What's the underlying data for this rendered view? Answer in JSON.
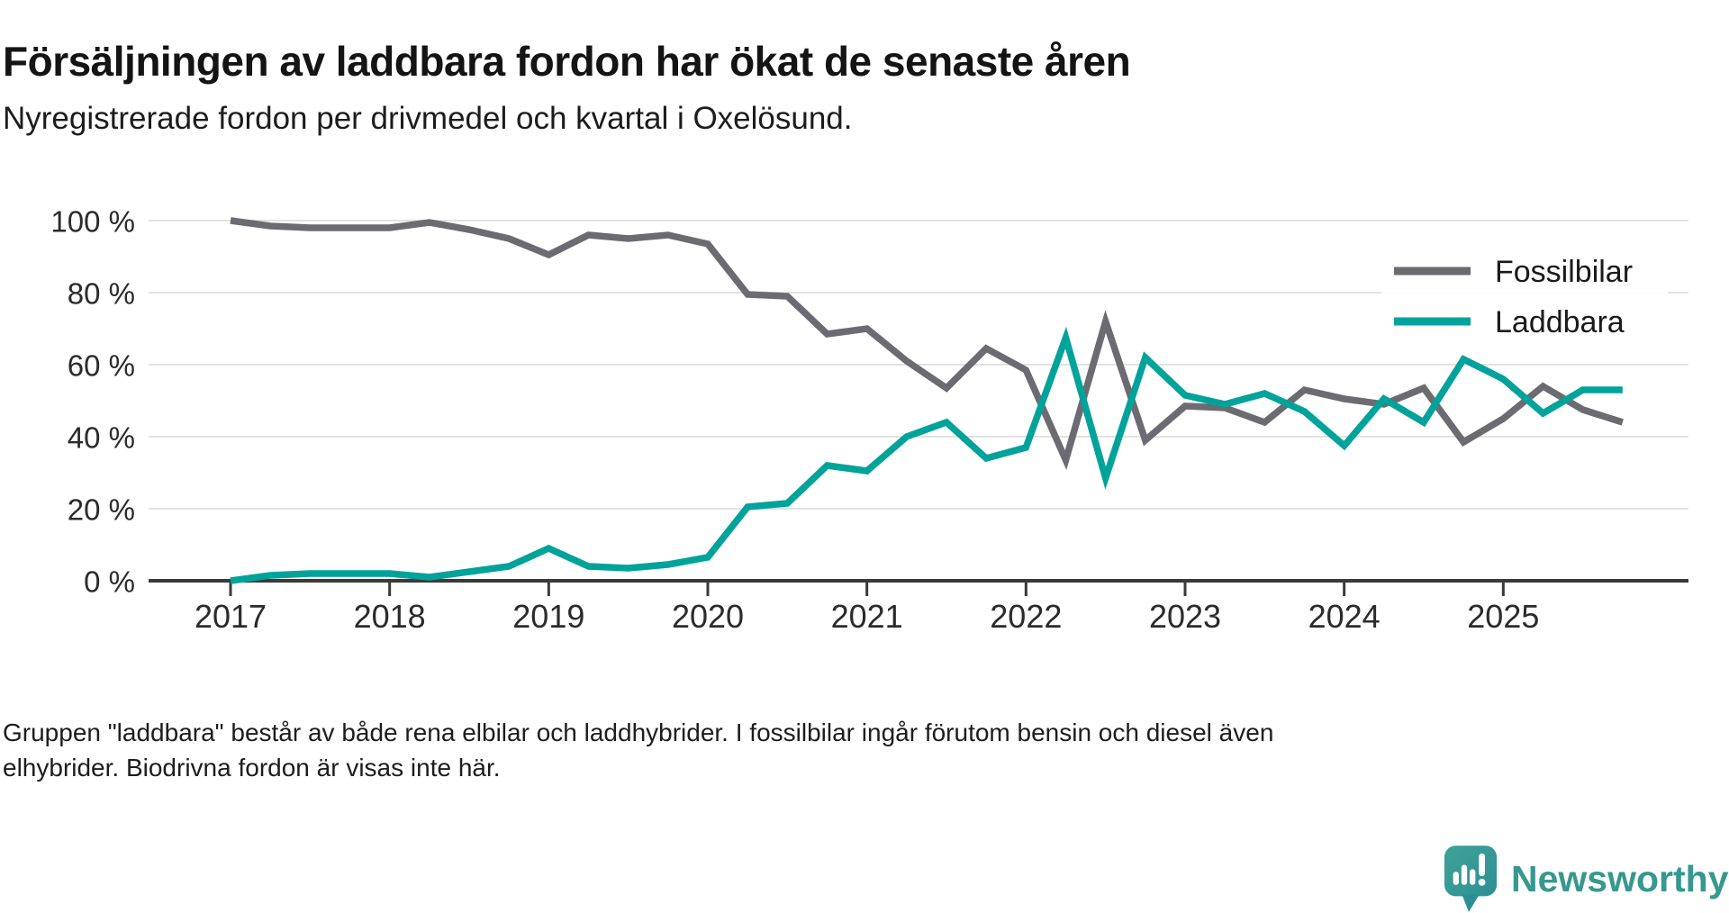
{
  "header": {
    "title": "Försäljningen av laddbara fordon har ökat de senaste åren",
    "subtitle": "Nyregistrerade fordon per drivmedel och kvartal i Oxelösund."
  },
  "chart_data": {
    "type": "line",
    "title": "Nyregistrerade fordon per drivmedel och kvartal i Oxelösund",
    "xlabel": "",
    "ylabel": "",
    "ylim": [
      0,
      100
    ],
    "grid": "horizontal",
    "legend_position": "top-right",
    "yticks": [
      0,
      20,
      40,
      60,
      80,
      100
    ],
    "ytick_labels": [
      "0 %",
      "20 %",
      "40 %",
      "60 %",
      "80 %",
      "100 %"
    ],
    "xticks": [
      "2017",
      "2018",
      "2019",
      "2020",
      "2021",
      "2022",
      "2023",
      "2024",
      "2025"
    ],
    "categories": [
      "2017 Q1",
      "2017 Q2",
      "2017 Q3",
      "2017 Q4",
      "2018 Q1",
      "2018 Q2",
      "2018 Q3",
      "2018 Q4",
      "2019 Q1",
      "2019 Q2",
      "2019 Q3",
      "2019 Q4",
      "2020 Q1",
      "2020 Q2",
      "2020 Q3",
      "2020 Q4",
      "2021 Q1",
      "2021 Q2",
      "2021 Q3",
      "2021 Q4",
      "2022 Q1",
      "2022 Q2",
      "2022 Q3",
      "2022 Q4",
      "2023 Q1",
      "2023 Q2",
      "2023 Q3",
      "2023 Q4",
      "2024 Q1",
      "2024 Q2",
      "2024 Q3",
      "2024 Q4",
      "2025 Q1",
      "2025 Q2",
      "2025 Q3",
      "2025 Q4"
    ],
    "series": [
      {
        "name": "Fossilbilar",
        "color": "#6c6b71",
        "values": [
          100,
          98.5,
          98,
          98,
          98,
          99.5,
          97.5,
          95,
          90.5,
          96,
          95,
          96,
          93.5,
          79.5,
          79,
          68.5,
          70,
          61,
          53.5,
          64.5,
          58.5,
          33.5,
          72,
          39,
          48.5,
          48,
          44,
          53,
          50.5,
          49,
          53.5,
          38.5,
          45,
          54,
          47.5,
          44
        ]
      },
      {
        "name": "Laddbara",
        "color": "#00a39a",
        "values": [
          0,
          1.5,
          2,
          2,
          2,
          1,
          2.5,
          4,
          9,
          4,
          3.5,
          4.5,
          6.5,
          20.5,
          21.5,
          32,
          30.5,
          40,
          44,
          34,
          37,
          67.5,
          28.5,
          62,
          51.5,
          49,
          52,
          47,
          37.5,
          50.5,
          44,
          61.5,
          56,
          46.5,
          53,
          53
        ]
      }
    ]
  },
  "footer": {
    "line1": "Gruppen \"laddbara\" består av både rena elbilar och laddhybrider. I fossilbilar ingår förutom bensin och diesel även",
    "line2": "elhybrider. Biodrivna fordon är visas inte här."
  },
  "logo": {
    "brand": "Newsworthy",
    "color": "#36988e"
  },
  "style": {
    "axis_color": "#3a3a3a",
    "grid_color": "#e2e2e2",
    "tick_text_color": "#2b2b2b",
    "legend_text_color": "#1a1a1a"
  }
}
